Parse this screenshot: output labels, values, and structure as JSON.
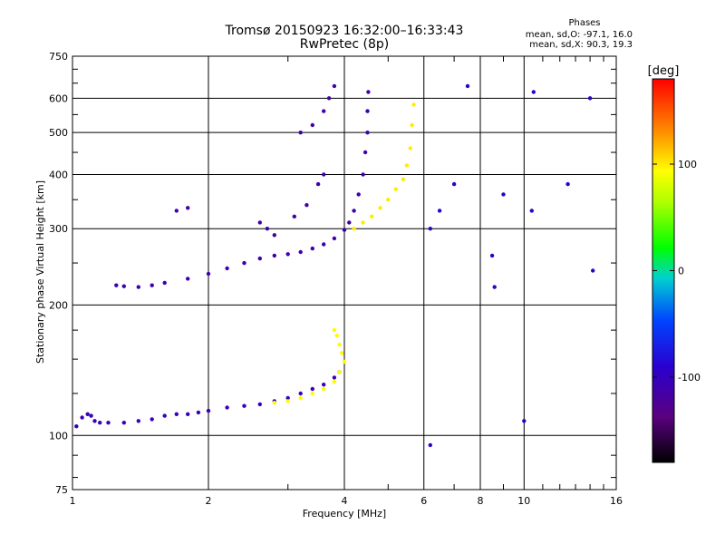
{
  "chart_data": {
    "type": "scatter",
    "title": "Tromsø 20150923 16:32:00–16:33:43",
    "subtitle": "RwPretec (8p)",
    "xlabel": "Frequency [MHz]",
    "ylabel": "Stationary phase Virtual Height [km]",
    "x_scale": "log",
    "y_scale": "log",
    "xlim": [
      1,
      16
    ],
    "ylim": [
      75,
      750
    ],
    "x_ticks": [
      1,
      2,
      4,
      6,
      8,
      10,
      16
    ],
    "x_tick_labels": [
      "1",
      "2",
      "4",
      "6",
      "8",
      "10",
      "16"
    ],
    "y_ticks": [
      75,
      100,
      200,
      300,
      400,
      500,
      600,
      750
    ],
    "y_tick_labels": [
      "75",
      "100",
      "200",
      "300",
      "400",
      "500",
      "600",
      "750"
    ],
    "grid": true,
    "info": {
      "heading": "Phases",
      "line1": "mean, sd,O: -97.1, 16.0",
      "line2": "mean, sd,X:  90.3, 19.3"
    },
    "colorbar": {
      "label": "[deg]",
      "min": -180,
      "max": 180,
      "ticks": [
        100,
        0,
        -100
      ],
      "tick_labels": [
        "100",
        "0",
        "-100"
      ],
      "colormap": "rainbow"
    },
    "series": [
      {
        "trace": "E-region O trace",
        "phase_deg": -105,
        "points": [
          [
            1.02,
            105
          ],
          [
            1.05,
            110
          ],
          [
            1.08,
            112
          ],
          [
            1.1,
            111
          ],
          [
            1.12,
            108
          ],
          [
            1.15,
            107
          ],
          [
            1.2,
            107
          ],
          [
            1.3,
            107
          ],
          [
            1.4,
            108
          ],
          [
            1.5,
            109
          ],
          [
            1.6,
            111
          ],
          [
            1.7,
            112
          ],
          [
            1.8,
            112
          ],
          [
            1.9,
            113
          ],
          [
            2.0,
            114
          ],
          [
            2.2,
            116
          ],
          [
            2.4,
            117
          ],
          [
            2.6,
            118
          ],
          [
            2.8,
            120
          ],
          [
            3.0,
            122
          ],
          [
            3.2,
            125
          ],
          [
            3.4,
            128
          ],
          [
            3.6,
            131
          ],
          [
            3.8,
            136
          ],
          [
            3.9,
            140
          ]
        ]
      },
      {
        "trace": "E-region X trace",
        "phase_deg": 95,
        "points": [
          [
            2.8,
            119
          ],
          [
            3.0,
            120
          ],
          [
            3.2,
            122
          ],
          [
            3.4,
            125
          ],
          [
            3.6,
            128
          ],
          [
            3.8,
            133
          ],
          [
            3.9,
            140
          ],
          [
            4.0,
            148
          ],
          [
            3.95,
            155
          ],
          [
            3.9,
            162
          ],
          [
            3.85,
            170
          ],
          [
            3.8,
            175
          ]
        ]
      },
      {
        "trace": "F-region O trace",
        "phase_deg": -110,
        "points": [
          [
            1.25,
            222
          ],
          [
            1.3,
            221
          ],
          [
            1.4,
            220
          ],
          [
            1.5,
            222
          ],
          [
            1.6,
            225
          ],
          [
            1.8,
            230
          ],
          [
            2.0,
            236
          ],
          [
            2.2,
            243
          ],
          [
            2.4,
            250
          ],
          [
            2.6,
            256
          ],
          [
            2.8,
            260
          ],
          [
            3.0,
            262
          ],
          [
            3.2,
            265
          ],
          [
            3.4,
            270
          ],
          [
            3.6,
            276
          ],
          [
            3.8,
            285
          ],
          [
            4.0,
            298
          ],
          [
            4.1,
            310
          ],
          [
            4.2,
            330
          ],
          [
            4.3,
            360
          ],
          [
            4.4,
            400
          ],
          [
            4.45,
            450
          ],
          [
            4.5,
            500
          ],
          [
            4.5,
            560
          ],
          [
            4.52,
            620
          ]
        ]
      },
      {
        "trace": "F-region X trace",
        "phase_deg": 100,
        "points": [
          [
            4.2,
            300
          ],
          [
            4.4,
            310
          ],
          [
            4.6,
            320
          ],
          [
            4.8,
            335
          ],
          [
            5.0,
            350
          ],
          [
            5.2,
            370
          ],
          [
            5.4,
            390
          ],
          [
            5.5,
            420
          ],
          [
            5.6,
            460
          ],
          [
            5.65,
            520
          ],
          [
            5.7,
            580
          ]
        ]
      },
      {
        "trace": "F-region scatter (O)",
        "phase_deg": -115,
        "points": [
          [
            1.7,
            330
          ],
          [
            1.8,
            335
          ],
          [
            2.6,
            310
          ],
          [
            2.7,
            300
          ],
          [
            2.8,
            290
          ],
          [
            3.1,
            320
          ],
          [
            3.3,
            340
          ],
          [
            3.5,
            380
          ],
          [
            3.6,
            400
          ],
          [
            3.2,
            500
          ],
          [
            3.4,
            520
          ],
          [
            3.6,
            560
          ],
          [
            3.7,
            600
          ],
          [
            3.8,
            640
          ]
        ]
      },
      {
        "trace": "Sporadic echoes",
        "phase_deg": -95,
        "points": [
          [
            6.2,
            300
          ],
          [
            6.5,
            330
          ],
          [
            7.0,
            380
          ],
          [
            7.5,
            640
          ],
          [
            8.5,
            260
          ],
          [
            8.6,
            220
          ],
          [
            9.0,
            360
          ],
          [
            10.5,
            620
          ],
          [
            10.4,
            330
          ],
          [
            12.5,
            380
          ],
          [
            14.0,
            600
          ],
          [
            14.2,
            240
          ],
          [
            6.2,
            95
          ],
          [
            10.0,
            108
          ]
        ]
      }
    ]
  }
}
